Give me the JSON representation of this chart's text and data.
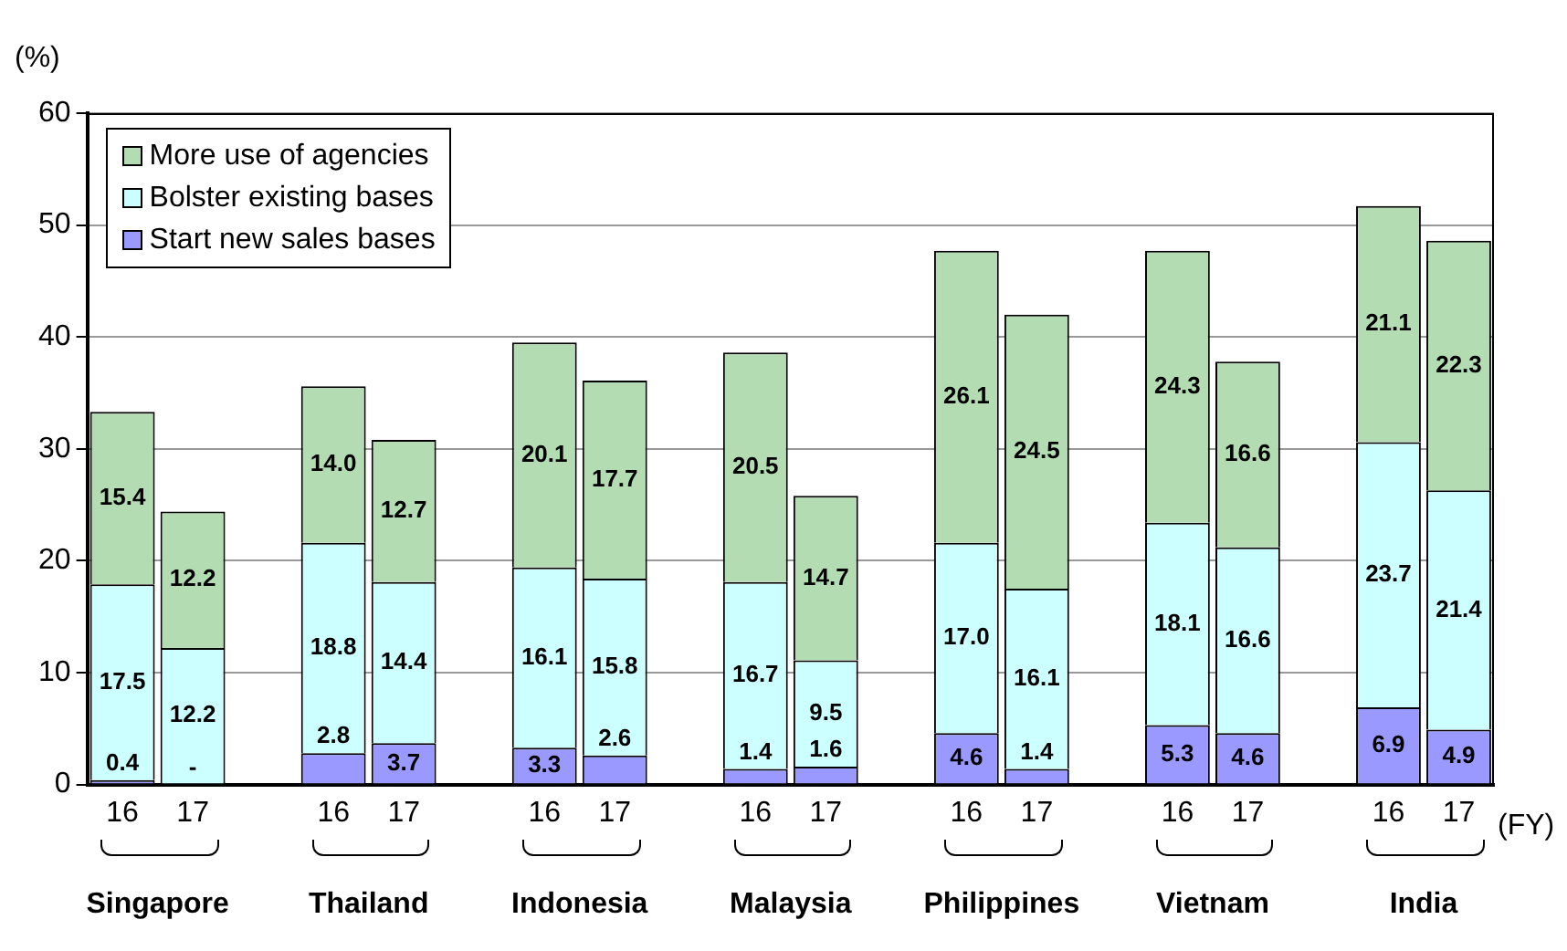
{
  "chart_data": {
    "type": "bar",
    "stacked": true,
    "categories": [
      "16",
      "17",
      null,
      "16",
      "17",
      null,
      "16",
      "17",
      null,
      "16",
      "17",
      null,
      "16",
      "17",
      null,
      "16",
      "17",
      null,
      "16",
      "17"
    ],
    "series": [
      {
        "name": "Start new sales bases",
        "color": "#9999ff",
        "values": [
          0.4,
          null,
          null,
          2.8,
          3.7,
          null,
          3.3,
          2.6,
          null,
          1.4,
          1.6,
          null,
          4.6,
          1.4,
          null,
          5.3,
          4.6,
          null,
          6.9,
          4.9
        ],
        "value_labels": [
          "0.4",
          "-",
          null,
          "2.8",
          "3.7",
          null,
          "3.3",
          "2.6",
          null,
          "1.4",
          "1.6",
          null,
          "4.6",
          "1.4",
          null,
          "5.3",
          "4.6",
          null,
          "6.9",
          "4.9"
        ]
      },
      {
        "name": "Bolster existing bases",
        "color": "#ccffff",
        "values": [
          17.5,
          12.2,
          null,
          18.8,
          14.4,
          null,
          16.1,
          15.8,
          null,
          16.7,
          9.5,
          null,
          17.0,
          16.1,
          null,
          18.1,
          16.6,
          null,
          23.7,
          21.4
        ],
        "value_labels": [
          "17.5",
          "12.2",
          null,
          "18.8",
          "14.4",
          null,
          "16.1",
          "15.8",
          null,
          "16.7",
          "9.5",
          null,
          "17.0",
          "16.1",
          null,
          "18.1",
          "16.6",
          null,
          "23.7",
          "21.4"
        ]
      },
      {
        "name": "More use of agencies",
        "color": "#b3dcb3",
        "values": [
          15.4,
          12.2,
          null,
          14.0,
          12.7,
          null,
          20.1,
          17.7,
          null,
          20.5,
          14.7,
          null,
          26.1,
          24.5,
          null,
          24.3,
          16.6,
          null,
          21.1,
          22.3
        ],
        "value_labels": [
          "15.4",
          "12.2",
          null,
          "14.0",
          "12.7",
          null,
          "20.1",
          "17.7",
          null,
          "20.5",
          "14.7",
          null,
          "26.1",
          "24.5",
          null,
          "24.3",
          "16.6",
          null,
          "21.1",
          "22.3"
        ]
      }
    ],
    "ylim": [
      0,
      60
    ],
    "yticks": [
      0,
      10,
      20,
      30,
      40,
      50,
      60
    ],
    "grid": "y",
    "legend": "top left",
    "annotations": [
      "(%)",
      "(FY)",
      "Singapore",
      "Thailand",
      "Indonesia",
      "Malaysia",
      "Philippines",
      "Vietnam",
      "India"
    ]
  }
}
